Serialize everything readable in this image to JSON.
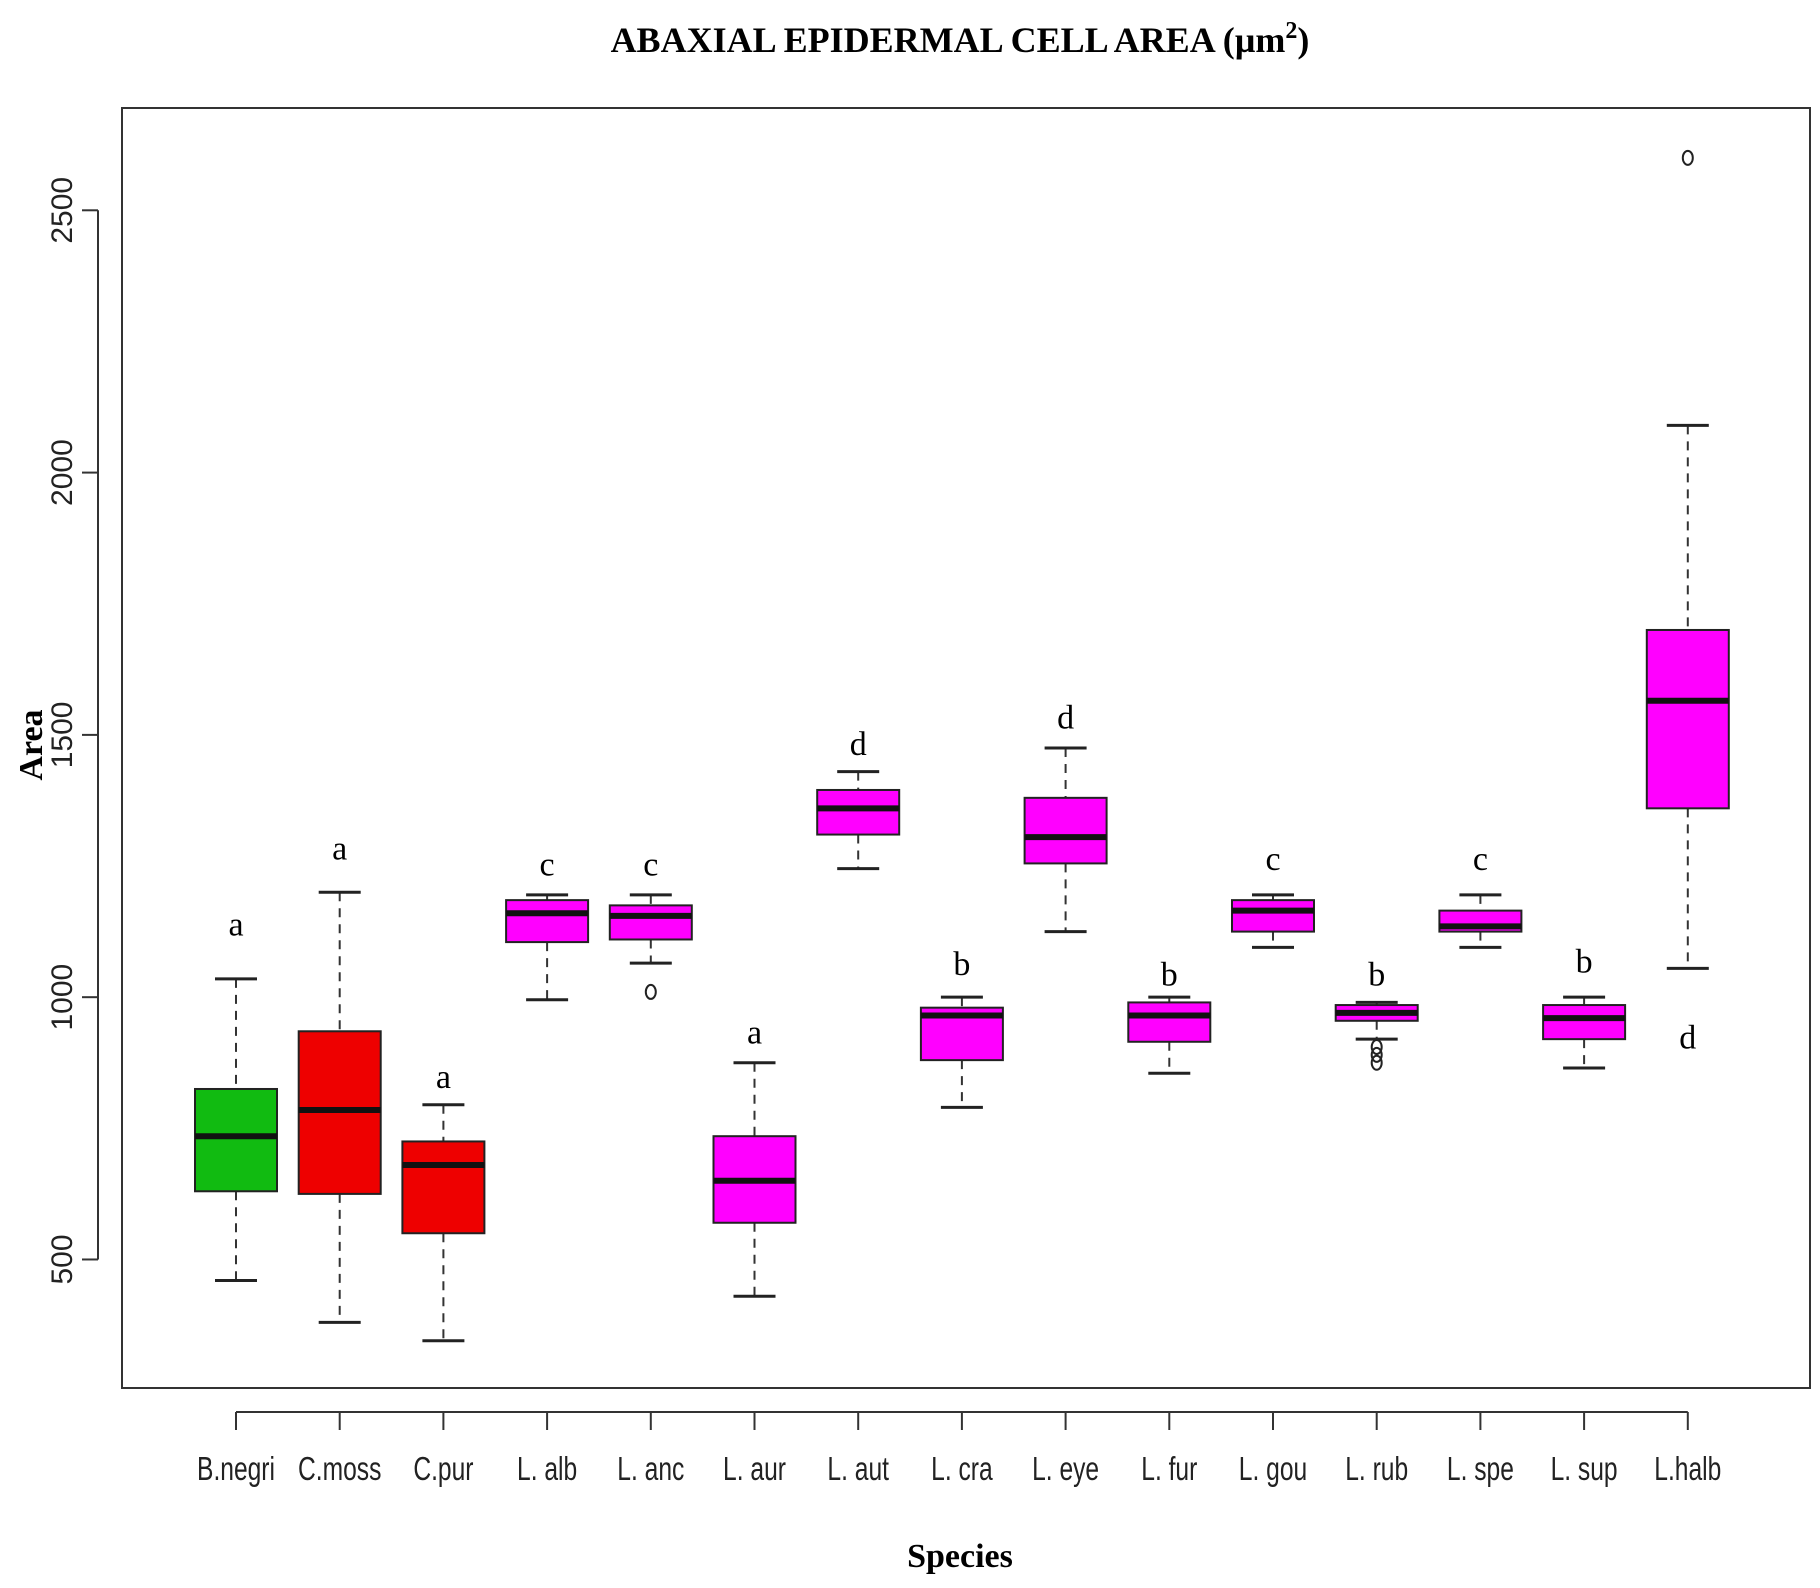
{
  "chart_data": {
    "type": "boxplot",
    "title_main": "ABAXIAL EPIDERMAL CELL AREA (µm",
    "title_sup": "2",
    "title_end": ")",
    "xlabel": "Species",
    "ylabel": "Area",
    "ylim": [
      255,
      2695
    ],
    "yticks": [
      "500",
      "1000",
      "1500",
      "2000",
      "2500"
    ],
    "colors": {
      "green": "#11bb11",
      "red": "#ee0000",
      "magenta": "#ff00ff"
    },
    "series": [
      {
        "name": "B.negri",
        "color": "green",
        "min": 460,
        "q1": 630,
        "median": 735,
        "q3": 825,
        "max": 1035,
        "outliers": [],
        "letter": "a",
        "letter_y": 1140
      },
      {
        "name": "C.moss",
        "color": "red",
        "min": 380,
        "q1": 625,
        "median": 785,
        "q3": 935,
        "max": 1200,
        "outliers": [],
        "letter": "a",
        "letter_y": 1285
      },
      {
        "name": "C.pur",
        "color": "red",
        "min": 345,
        "q1": 550,
        "median": 680,
        "q3": 725,
        "max": 795,
        "outliers": [],
        "letter": "a",
        "letter_y": 850
      },
      {
        "name": "L. alb",
        "color": "magenta",
        "min": 995,
        "q1": 1105,
        "median": 1160,
        "q3": 1185,
        "max": 1195,
        "outliers": [],
        "letter": "c",
        "letter_y": 1255
      },
      {
        "name": "L. anc",
        "color": "magenta",
        "min": 1065,
        "q1": 1110,
        "median": 1155,
        "q3": 1175,
        "max": 1195,
        "outliers": [
          1010
        ],
        "letter": "c",
        "letter_y": 1255
      },
      {
        "name": "L. aur",
        "color": "magenta",
        "min": 430,
        "q1": 570,
        "median": 650,
        "q3": 735,
        "max": 875,
        "outliers": [],
        "letter": "a",
        "letter_y": 935
      },
      {
        "name": "L. aut",
        "color": "magenta",
        "min": 1245,
        "q1": 1310,
        "median": 1360,
        "q3": 1395,
        "max": 1430,
        "outliers": [],
        "letter": "d",
        "letter_y": 1485
      },
      {
        "name": "L. cra",
        "color": "magenta",
        "min": 790,
        "q1": 880,
        "median": 965,
        "q3": 980,
        "max": 1000,
        "outliers": [],
        "letter": "b",
        "letter_y": 1065
      },
      {
        "name": "L. eye",
        "color": "magenta",
        "min": 1125,
        "q1": 1255,
        "median": 1305,
        "q3": 1380,
        "max": 1475,
        "outliers": [],
        "letter": "d",
        "letter_y": 1535
      },
      {
        "name": "L. fur",
        "color": "magenta",
        "min": 855,
        "q1": 915,
        "median": 965,
        "q3": 990,
        "max": 1000,
        "outliers": [],
        "letter": "b",
        "letter_y": 1045
      },
      {
        "name": "L. gou",
        "color": "magenta",
        "min": 1095,
        "q1": 1125,
        "median": 1165,
        "q3": 1185,
        "max": 1195,
        "outliers": [],
        "letter": "c",
        "letter_y": 1265
      },
      {
        "name": "L. rub",
        "color": "magenta",
        "min": 920,
        "q1": 955,
        "median": 970,
        "q3": 985,
        "max": 990,
        "outliers": [
          905,
          890,
          875
        ],
        "letter": "b",
        "letter_y": 1045
      },
      {
        "name": "L. spe",
        "color": "magenta",
        "min": 1095,
        "q1": 1125,
        "median": 1135,
        "q3": 1165,
        "max": 1195,
        "outliers": [],
        "letter": "c",
        "letter_y": 1265
      },
      {
        "name": "L. sup",
        "color": "magenta",
        "min": 865,
        "q1": 920,
        "median": 960,
        "q3": 985,
        "max": 1000,
        "outliers": [],
        "letter": "b",
        "letter_y": 1070
      },
      {
        "name": "L.halb",
        "color": "magenta",
        "min": 1055,
        "q1": 1360,
        "median": 1565,
        "q3": 1700,
        "max": 2090,
        "outliers": [
          2600
        ],
        "letter": "d",
        "letter_y": 925
      }
    ]
  }
}
